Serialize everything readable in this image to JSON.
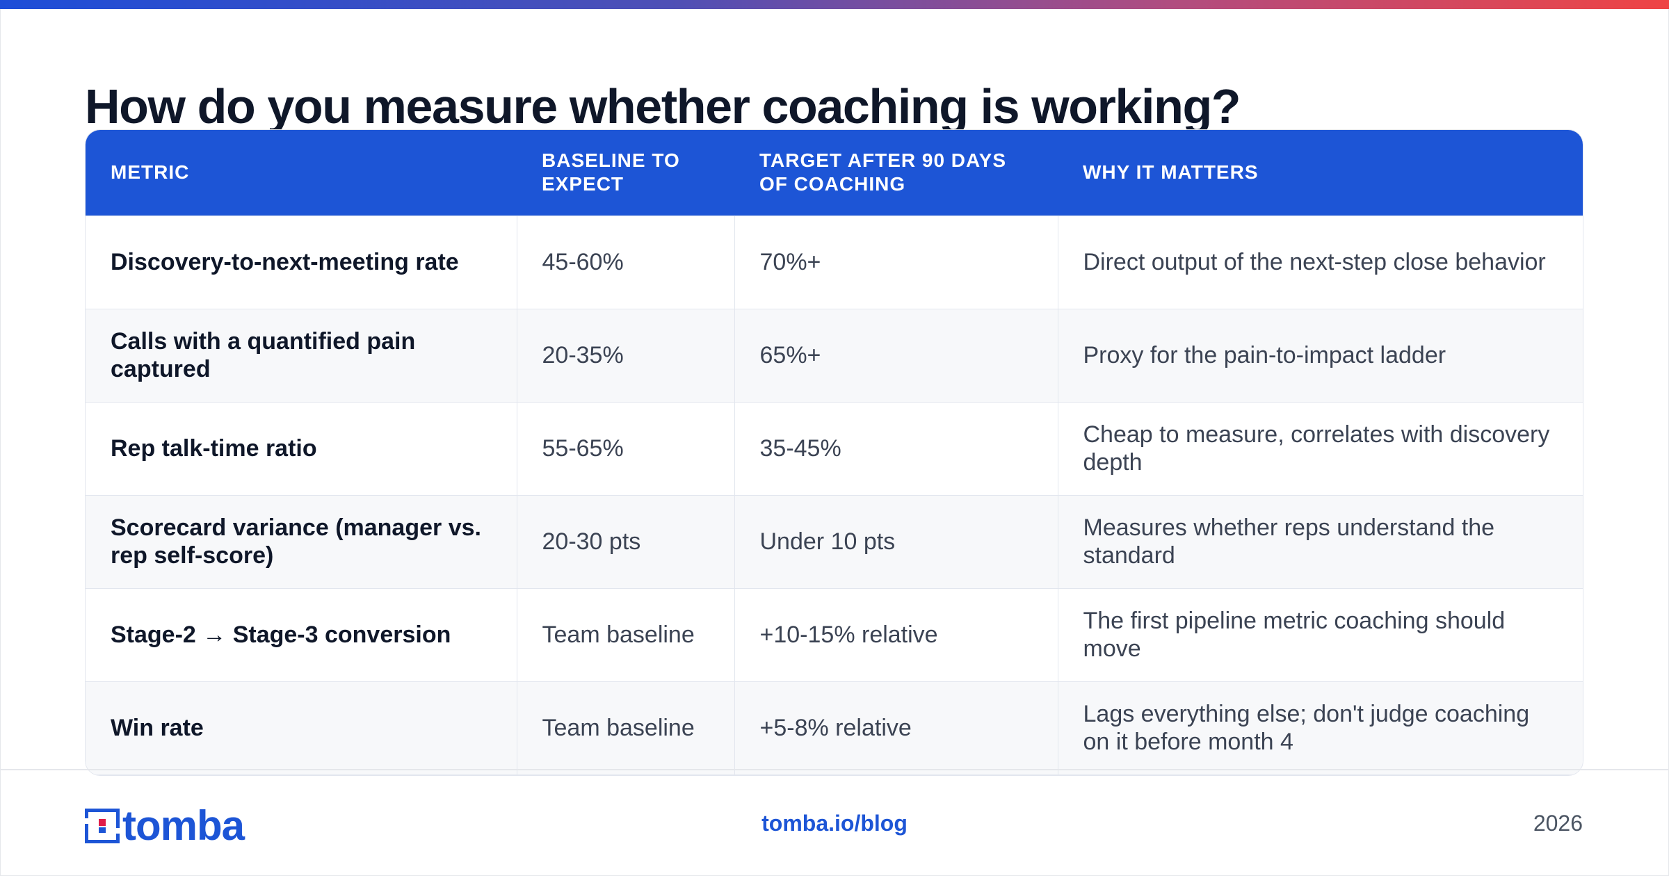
{
  "title": "How do you measure whether coaching is working?",
  "table": {
    "headers": [
      "METRIC",
      "BASELINE TO EXPECT",
      "TARGET AFTER 90 DAYS OF COACHING",
      "WHY IT MATTERS"
    ],
    "rows": [
      [
        "Discovery-to-next-meeting rate",
        "45-60%",
        "70%+",
        "Direct output of the next-step close behavior"
      ],
      [
        "Calls with a quantified pain captured",
        "20-35%",
        "65%+",
        "Proxy for the pain-to-impact ladder"
      ],
      [
        "Rep talk-time ratio",
        "55-65%",
        "35-45%",
        "Cheap to measure, correlates with discovery depth"
      ],
      [
        "Scorecard variance (manager vs. rep self-score)",
        "20-30 pts",
        "Under 10 pts",
        "Measures whether reps understand the standard"
      ],
      [
        "Stage-2 → Stage-3 conversion",
        "Team baseline",
        "+10-15% relative",
        "The first pipeline metric coaching should move"
      ],
      [
        "Win rate",
        "Team baseline",
        "+5-8% relative",
        "Lags everything else; don't judge coaching on it before month 4"
      ]
    ]
  },
  "footer": {
    "logo_text": "tomba",
    "url": "tomba.io/blog",
    "year": "2026"
  },
  "colors": {
    "accent": "#1d55d6",
    "title": "#0f1729",
    "body_text": "#3b4353",
    "row_alt": "#f7f8fa",
    "gradient_start": "#1d4ed8",
    "gradient_end": "#ef4444"
  }
}
